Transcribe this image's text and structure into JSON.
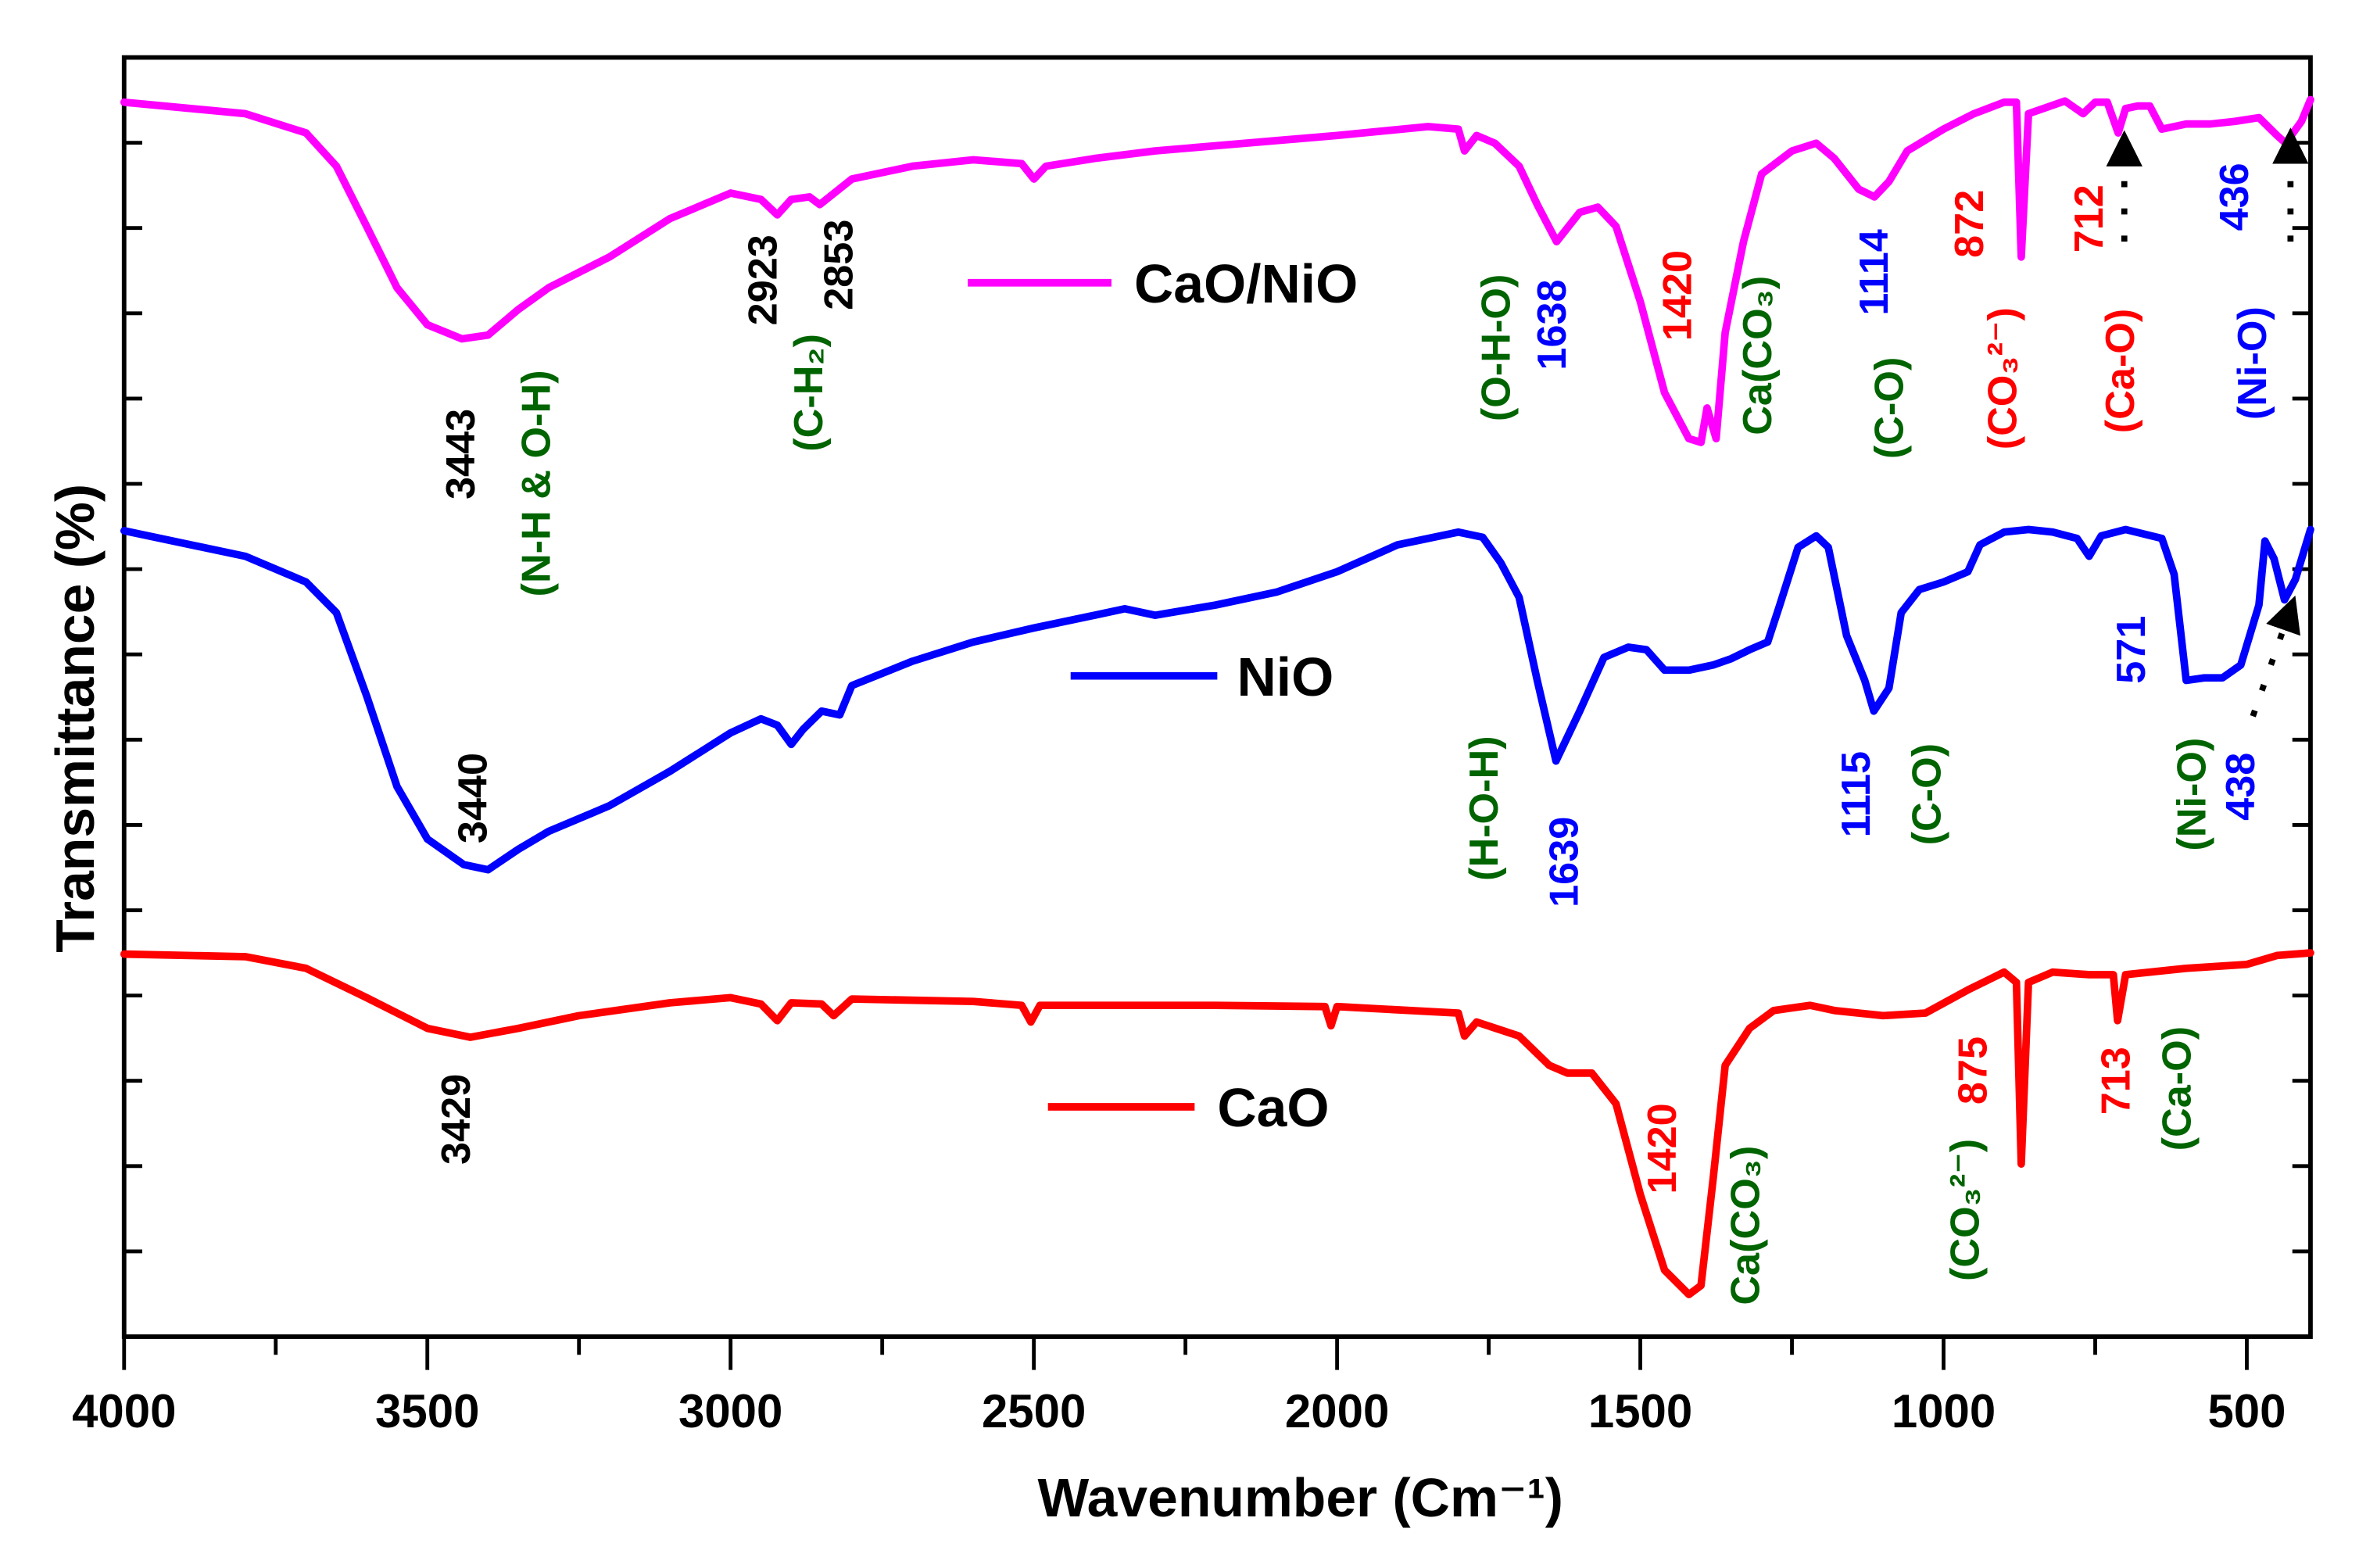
{
  "chart_data": {
    "type": "line",
    "title": "",
    "xlabel": "Wavenumber (Cm⁻¹)",
    "ylabel": "Transmittance (%)",
    "xlim": [
      4000,
      395
    ],
    "ylim": [
      0,
      100
    ],
    "x_ticks": [
      4000,
      3500,
      3000,
      2500,
      2000,
      1500,
      1000,
      500
    ],
    "x_tick_labels": [
      "4000",
      "3500",
      "3000",
      "2500",
      "2000",
      "1500",
      "1000",
      "500"
    ],
    "y_tick_labels_shown": false,
    "grid": false,
    "legend_placement": "inline, next to each curve",
    "series": [
      {
        "name": "CaO/NiO",
        "color": "#ff00ff",
        "points": [
          [
            4000,
            96.5
          ],
          [
            3800,
            95.6
          ],
          [
            3700,
            94.1
          ],
          [
            3650,
            91.5
          ],
          [
            3600,
            86.8
          ],
          [
            3550,
            82.0
          ],
          [
            3500,
            79.1
          ],
          [
            3443,
            78.0
          ],
          [
            3400,
            78.3
          ],
          [
            3350,
            80.3
          ],
          [
            3300,
            82.0
          ],
          [
            3200,
            84.4
          ],
          [
            3100,
            87.4
          ],
          [
            3000,
            89.4
          ],
          [
            2950,
            88.9
          ],
          [
            2923,
            87.7
          ],
          [
            2900,
            88.9
          ],
          [
            2870,
            89.1
          ],
          [
            2853,
            88.5
          ],
          [
            2800,
            90.5
          ],
          [
            2700,
            91.5
          ],
          [
            2600,
            92.0
          ],
          [
            2520,
            91.7
          ],
          [
            2500,
            90.5
          ],
          [
            2480,
            91.5
          ],
          [
            2400,
            92.1
          ],
          [
            2300,
            92.7
          ],
          [
            2200,
            93.1
          ],
          [
            2000,
            93.9
          ],
          [
            1850,
            94.6
          ],
          [
            1800,
            94.4
          ],
          [
            1790,
            92.7
          ],
          [
            1770,
            93.9
          ],
          [
            1740,
            93.3
          ],
          [
            1700,
            91.5
          ],
          [
            1670,
            88.5
          ],
          [
            1638,
            85.6
          ],
          [
            1600,
            87.9
          ],
          [
            1570,
            88.3
          ],
          [
            1540,
            86.8
          ],
          [
            1500,
            80.9
          ],
          [
            1460,
            73.8
          ],
          [
            1420,
            70.2
          ],
          [
            1400,
            69.9
          ],
          [
            1390,
            72.6
          ],
          [
            1375,
            70.2
          ],
          [
            1360,
            78.5
          ],
          [
            1330,
            85.6
          ],
          [
            1300,
            90.9
          ],
          [
            1250,
            92.7
          ],
          [
            1210,
            93.3
          ],
          [
            1180,
            92.1
          ],
          [
            1140,
            89.7
          ],
          [
            1114,
            89.1
          ],
          [
            1090,
            90.3
          ],
          [
            1060,
            92.7
          ],
          [
            1000,
            94.4
          ],
          [
            950,
            95.6
          ],
          [
            900,
            96.5
          ],
          [
            880,
            96.5
          ],
          [
            872,
            84.4
          ],
          [
            860,
            95.6
          ],
          [
            800,
            96.6
          ],
          [
            770,
            95.6
          ],
          [
            750,
            96.5
          ],
          [
            730,
            96.5
          ],
          [
            712,
            94.1
          ],
          [
            700,
            96.0
          ],
          [
            680,
            96.2
          ],
          [
            660,
            96.2
          ],
          [
            640,
            94.4
          ],
          [
            600,
            94.8
          ],
          [
            560,
            94.8
          ],
          [
            520,
            95.0
          ],
          [
            480,
            95.3
          ],
          [
            450,
            93.9
          ],
          [
            436,
            93.3
          ],
          [
            410,
            95.0
          ],
          [
            395,
            96.7
          ]
        ]
      },
      {
        "name": "NiO",
        "color": "#0000ff",
        "points": [
          [
            4000,
            63.0
          ],
          [
            3800,
            61.0
          ],
          [
            3700,
            59.0
          ],
          [
            3650,
            56.6
          ],
          [
            3600,
            50.1
          ],
          [
            3550,
            43.0
          ],
          [
            3500,
            38.9
          ],
          [
            3440,
            36.9
          ],
          [
            3400,
            36.5
          ],
          [
            3350,
            38.1
          ],
          [
            3300,
            39.5
          ],
          [
            3200,
            41.5
          ],
          [
            3100,
            44.2
          ],
          [
            3000,
            47.2
          ],
          [
            2950,
            48.3
          ],
          [
            2923,
            47.8
          ],
          [
            2900,
            46.3
          ],
          [
            2880,
            47.5
          ],
          [
            2850,
            48.9
          ],
          [
            2820,
            48.6
          ],
          [
            2800,
            50.9
          ],
          [
            2700,
            52.8
          ],
          [
            2600,
            54.3
          ],
          [
            2500,
            55.4
          ],
          [
            2400,
            56.4
          ],
          [
            2350,
            56.9
          ],
          [
            2300,
            56.4
          ],
          [
            2200,
            57.2
          ],
          [
            2100,
            58.2
          ],
          [
            2000,
            59.8
          ],
          [
            1900,
            61.9
          ],
          [
            1800,
            62.9
          ],
          [
            1760,
            62.5
          ],
          [
            1730,
            60.5
          ],
          [
            1700,
            57.8
          ],
          [
            1670,
            51.3
          ],
          [
            1639,
            45.0
          ],
          [
            1600,
            48.9
          ],
          [
            1560,
            53.1
          ],
          [
            1520,
            53.9
          ],
          [
            1490,
            53.7
          ],
          [
            1460,
            52.1
          ],
          [
            1420,
            52.1
          ],
          [
            1380,
            52.5
          ],
          [
            1350,
            53.0
          ],
          [
            1320,
            53.7
          ],
          [
            1290,
            54.3
          ],
          [
            1270,
            57.2
          ],
          [
            1240,
            61.7
          ],
          [
            1210,
            62.6
          ],
          [
            1190,
            61.7
          ],
          [
            1160,
            54.8
          ],
          [
            1130,
            51.3
          ],
          [
            1115,
            48.9
          ],
          [
            1090,
            50.7
          ],
          [
            1070,
            56.6
          ],
          [
            1040,
            58.4
          ],
          [
            1000,
            59.0
          ],
          [
            960,
            59.8
          ],
          [
            940,
            61.9
          ],
          [
            900,
            62.9
          ],
          [
            860,
            63.1
          ],
          [
            820,
            62.9
          ],
          [
            780,
            62.4
          ],
          [
            760,
            61.0
          ],
          [
            740,
            62.6
          ],
          [
            700,
            63.1
          ],
          [
            640,
            62.4
          ],
          [
            620,
            59.6
          ],
          [
            600,
            51.3
          ],
          [
            570,
            51.5
          ],
          [
            540,
            51.5
          ],
          [
            510,
            52.5
          ],
          [
            480,
            57.2
          ],
          [
            470,
            62.2
          ],
          [
            455,
            60.8
          ],
          [
            438,
            57.6
          ],
          [
            420,
            59.2
          ],
          [
            395,
            63.1
          ]
        ]
      },
      {
        "name": "CaO",
        "color": "#ff0000",
        "points": [
          [
            4000,
            29.9
          ],
          [
            3800,
            29.7
          ],
          [
            3700,
            28.8
          ],
          [
            3600,
            26.5
          ],
          [
            3500,
            24.1
          ],
          [
            3429,
            23.4
          ],
          [
            3350,
            24.1
          ],
          [
            3250,
            25.1
          ],
          [
            3100,
            26.1
          ],
          [
            3000,
            26.5
          ],
          [
            2950,
            26.0
          ],
          [
            2923,
            24.7
          ],
          [
            2900,
            26.1
          ],
          [
            2850,
            26.0
          ],
          [
            2830,
            25.1
          ],
          [
            2800,
            26.4
          ],
          [
            2600,
            26.2
          ],
          [
            2520,
            25.9
          ],
          [
            2505,
            24.6
          ],
          [
            2490,
            25.9
          ],
          [
            2200,
            25.9
          ],
          [
            2020,
            25.8
          ],
          [
            2010,
            24.3
          ],
          [
            2000,
            25.8
          ],
          [
            1800,
            25.3
          ],
          [
            1790,
            23.5
          ],
          [
            1770,
            24.6
          ],
          [
            1700,
            23.5
          ],
          [
            1650,
            21.2
          ],
          [
            1620,
            20.6
          ],
          [
            1580,
            20.6
          ],
          [
            1540,
            18.2
          ],
          [
            1500,
            11.1
          ],
          [
            1460,
            5.2
          ],
          [
            1420,
            3.3
          ],
          [
            1400,
            4.0
          ],
          [
            1380,
            12.3
          ],
          [
            1360,
            21.2
          ],
          [
            1320,
            24.1
          ],
          [
            1280,
            25.5
          ],
          [
            1220,
            25.9
          ],
          [
            1180,
            25.5
          ],
          [
            1100,
            25.1
          ],
          [
            1030,
            25.3
          ],
          [
            960,
            27.1
          ],
          [
            900,
            28.5
          ],
          [
            880,
            27.7
          ],
          [
            872,
            13.5
          ],
          [
            860,
            27.7
          ],
          [
            820,
            28.5
          ],
          [
            760,
            28.3
          ],
          [
            720,
            28.3
          ],
          [
            713,
            24.7
          ],
          [
            700,
            28.3
          ],
          [
            600,
            28.8
          ],
          [
            500,
            29.1
          ],
          [
            450,
            29.8
          ],
          [
            395,
            30.0
          ]
        ]
      }
    ],
    "annotations": [
      {
        "text": "3443",
        "x": 3444,
        "y": 69.0,
        "color": "#000000"
      },
      {
        "text": "(N-H & O-H)",
        "x": 3320,
        "y": 66.7,
        "color": "#006400"
      },
      {
        "text": "2923",
        "x": 2946,
        "y": 82.6,
        "color": "#000000"
      },
      {
        "text": "(C-H₂)",
        "x": 2871,
        "y": 73.8,
        "color": "#006400"
      },
      {
        "text": "2853",
        "x": 2821,
        "y": 83.8,
        "color": "#000000"
      },
      {
        "text": "(O-H-O)",
        "x": 1737,
        "y": 77.3,
        "color": "#006400"
      },
      {
        "text": "1638",
        "x": 1645,
        "y": 79.1,
        "color": "#0000ff"
      },
      {
        "text": "1420",
        "x": 1438,
        "y": 81.4,
        "color": "#ff0000"
      },
      {
        "text": "Ca(CO₃)",
        "x": 1306,
        "y": 76.7,
        "color": "#006400"
      },
      {
        "text": "(C-O)",
        "x": 1089,
        "y": 72.6,
        "color": "#006400"
      },
      {
        "text": "1114",
        "x": 1114,
        "y": 83.2,
        "color": "#0000ff"
      },
      {
        "text": "872",
        "x": 957,
        "y": 87.0,
        "color": "#ff0000"
      },
      {
        "text": "(CO₃²⁻)",
        "x": 902,
        "y": 74.9,
        "color": "#ff0000"
      },
      {
        "text": "712",
        "x": 760,
        "y": 87.4,
        "color": "#ff0000"
      },
      {
        "text": "(Ca-O)",
        "x": 708,
        "y": 75.5,
        "color": "#ff0000"
      },
      {
        "text": "436",
        "x": 520,
        "y": 89.1,
        "color": "#0000ff"
      },
      {
        "text": "(Ni-O)",
        "x": 490,
        "y": 76.1,
        "color": "#0000ff"
      },
      {
        "text": "3440",
        "x": 3424,
        "y": 42.1,
        "color": "#000000"
      },
      {
        "text": "(H-O-H)",
        "x": 1757,
        "y": 41.3,
        "color": "#006400"
      },
      {
        "text": "1639",
        "x": 1625,
        "y": 37.1,
        "color": "#0000ff"
      },
      {
        "text": "1115",
        "x": 1144,
        "y": 42.4,
        "color": "#0000ff"
      },
      {
        "text": "(C-O)",
        "x": 1027,
        "y": 42.4,
        "color": "#006400"
      },
      {
        "text": "571",
        "x": 690,
        "y": 53.7,
        "color": "#0000ff"
      },
      {
        "text": "(Ni-O)",
        "x": 590,
        "y": 42.4,
        "color": "#006400"
      },
      {
        "text": "438",
        "x": 510,
        "y": 43.0,
        "color": "#0000ff"
      },
      {
        "text": "3429",
        "x": 3452,
        "y": 17.0,
        "color": "#000000"
      },
      {
        "text": "1420",
        "x": 1463,
        "y": 14.7,
        "color": "#ff0000"
      },
      {
        "text": "Ca(CO₃)",
        "x": 1326,
        "y": 8.7,
        "color": "#006400"
      },
      {
        "text": "(CO₃²⁻)",
        "x": 964,
        "y": 9.9,
        "color": "#006400"
      },
      {
        "text": "875",
        "x": 951,
        "y": 20.8,
        "color": "#ff0000"
      },
      {
        "text": "713",
        "x": 715,
        "y": 20.0,
        "color": "#ff0000"
      },
      {
        "text": "(Ca-O)",
        "x": 615,
        "y": 19.4,
        "color": "#006400"
      }
    ],
    "arrows": [
      {
        "from": [
          702,
          85.6
        ],
        "to": [
          702,
          92.9
        ]
      },
      {
        "from": [
          428,
          85.6
        ],
        "to": [
          428,
          93.1
        ]
      },
      {
        "from": [
          490,
          48.5
        ],
        "to": [
          430,
          56.6
        ]
      }
    ]
  }
}
